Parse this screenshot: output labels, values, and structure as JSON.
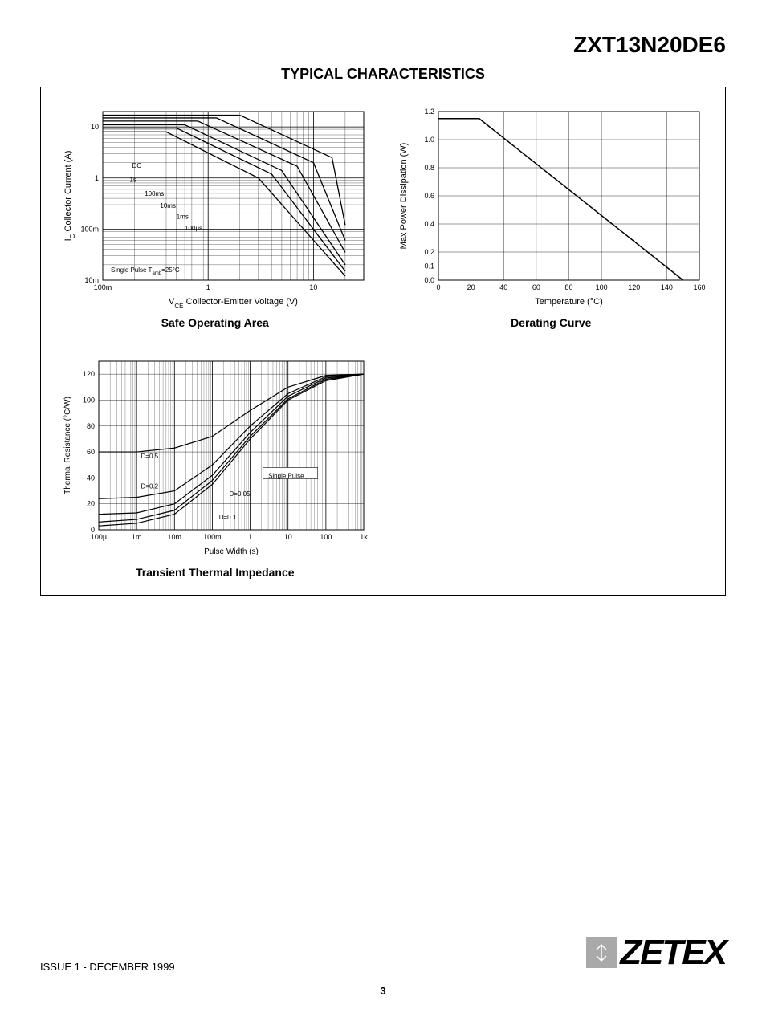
{
  "header": {
    "part_number": "ZXT13N20DE6",
    "section_title": "TYPICAL CHARACTERISTICS"
  },
  "footer": {
    "issue": "ISSUE 1 - DECEMBER 1999",
    "logo_text": "ZETEX",
    "page_number": "3"
  },
  "chart_soa": {
    "type": "line-loglog",
    "title": "Safe Operating Area",
    "xlabel": "VCE  Collector-Emitter Voltage (V)",
    "xlabel_prefix": "V",
    "xlabel_sub": "CE",
    "xlabel_rest": "  Collector-Emitter Voltage (V)",
    "ylabel_prefix": "I",
    "ylabel_sub": "C",
    "ylabel_rest": " Collector Current (A)",
    "xlim": [
      0.1,
      30
    ],
    "ylim": [
      0.01,
      20
    ],
    "x_ticks": [
      {
        "v": 0.1,
        "l": "100m"
      },
      {
        "v": 1,
        "l": "1"
      },
      {
        "v": 10,
        "l": "10"
      }
    ],
    "y_ticks": [
      {
        "v": 0.01,
        "l": "10m"
      },
      {
        "v": 0.1,
        "l": "100m"
      },
      {
        "v": 1,
        "l": "1"
      },
      {
        "v": 10,
        "l": "10"
      }
    ],
    "note": "Single Pulse  T",
    "note_sub": "amb",
    "note_rest": "=25°C",
    "series": [
      {
        "label": "DC",
        "lx": 0.19,
        "ly": 1.6,
        "points": [
          [
            0.1,
            8
          ],
          [
            0.4,
            8
          ],
          [
            3,
            1
          ],
          [
            20,
            0.012
          ]
        ]
      },
      {
        "label": "1s",
        "lx": 0.18,
        "ly": 0.85,
        "points": [
          [
            0.1,
            9.5
          ],
          [
            0.5,
            9.5
          ],
          [
            4,
            1.2
          ],
          [
            20,
            0.015
          ]
        ]
      },
      {
        "label": "100ms",
        "lx": 0.25,
        "ly": 0.45,
        "points": [
          [
            0.1,
            11
          ],
          [
            0.6,
            11
          ],
          [
            5,
            1.4
          ],
          [
            20,
            0.02
          ]
        ]
      },
      {
        "label": "10ms",
        "lx": 0.35,
        "ly": 0.26,
        "points": [
          [
            0.1,
            13
          ],
          [
            0.8,
            13
          ],
          [
            7,
            1.7
          ],
          [
            20,
            0.035
          ]
        ]
      },
      {
        "label": "1ms",
        "lx": 0.5,
        "ly": 0.16,
        "points": [
          [
            0.1,
            15
          ],
          [
            1.2,
            15
          ],
          [
            10,
            2
          ],
          [
            20,
            0.06
          ]
        ]
      },
      {
        "label": "100µs",
        "lx": 0.6,
        "ly": 0.095,
        "points": [
          [
            0.1,
            17
          ],
          [
            2,
            17
          ],
          [
            15,
            2.5
          ],
          [
            20,
            0.12
          ]
        ]
      }
    ],
    "colors": {
      "line": "#000000",
      "grid": "#000000",
      "text": "#000000",
      "bg": "#ffffff"
    },
    "fontsize": {
      "tick": 9,
      "label": 11,
      "note": 8,
      "series": 8
    }
  },
  "chart_derate": {
    "type": "line",
    "title": "Derating Curve",
    "xlabel": "Temperature (°C)",
    "ylabel": "Max Power Dissipation (W)",
    "xlim": [
      0,
      160
    ],
    "ylim": [
      0.0,
      1.2
    ],
    "x_ticks": [
      0,
      20,
      40,
      60,
      80,
      100,
      120,
      140,
      160
    ],
    "y_ticks_ext": [
      {
        "v": 0.0,
        "l": "0.0"
      },
      {
        "v": 0.1,
        "l": "0.1"
      },
      {
        "v": 0.2,
        "l": "0.2"
      },
      {
        "v": 0.4,
        "l": "0.4"
      },
      {
        "v": 0.6,
        "l": "0.6"
      },
      {
        "v": 0.8,
        "l": "0.8"
      },
      {
        "v": 1.0,
        "l": "1.0"
      },
      {
        "v": 1.2,
        "l": "1.2"
      }
    ],
    "series": [
      {
        "points": [
          [
            0,
            1.15
          ],
          [
            25,
            1.15
          ],
          [
            150,
            0
          ]
        ]
      }
    ],
    "colors": {
      "line": "#000000",
      "grid": "#000000",
      "text": "#000000",
      "bg": "#ffffff"
    },
    "fontsize": {
      "tick": 9,
      "label": 11
    }
  },
  "chart_thermal": {
    "type": "line-logx",
    "title": "Transient Thermal Impedance",
    "xlabel": "Pulse Width (s)",
    "ylabel": "Thermal Resistance (°C/W)",
    "xlim": [
      0.0001,
      1000
    ],
    "ylim": [
      0,
      130
    ],
    "x_ticks": [
      {
        "v": 0.0001,
        "l": "100µ"
      },
      {
        "v": 0.001,
        "l": "1m"
      },
      {
        "v": 0.01,
        "l": "10m"
      },
      {
        "v": 0.1,
        "l": "100m"
      },
      {
        "v": 1,
        "l": "1"
      },
      {
        "v": 10,
        "l": "10"
      },
      {
        "v": 100,
        "l": "100"
      },
      {
        "v": 1000,
        "l": "1k"
      }
    ],
    "y_ticks": [
      0,
      20,
      40,
      60,
      80,
      100,
      120
    ],
    "series": [
      {
        "label": "Single Pulse",
        "lx": 4,
        "ly": 42,
        "points": [
          [
            0.0001,
            3
          ],
          [
            0.001,
            5
          ],
          [
            0.01,
            12
          ],
          [
            0.1,
            35
          ],
          [
            1,
            70
          ],
          [
            10,
            100
          ],
          [
            100,
            115
          ],
          [
            1000,
            120
          ]
        ]
      },
      {
        "label": "D=0.05",
        "lx": 0.28,
        "ly": 26,
        "points": [
          [
            0.0001,
            6
          ],
          [
            0.001,
            8
          ],
          [
            0.01,
            15
          ],
          [
            0.1,
            38
          ],
          [
            1,
            72
          ],
          [
            10,
            101
          ],
          [
            100,
            116
          ],
          [
            1000,
            120
          ]
        ]
      },
      {
        "label": "D=0.1",
        "lx": 0.15,
        "ly": 8,
        "points": [
          [
            0.0001,
            12
          ],
          [
            0.001,
            13
          ],
          [
            0.01,
            20
          ],
          [
            0.1,
            42
          ],
          [
            1,
            75
          ],
          [
            10,
            103
          ],
          [
            100,
            117
          ],
          [
            1000,
            120
          ]
        ]
      },
      {
        "label": "D=0.2",
        "lx": 0.0013,
        "ly": 32,
        "points": [
          [
            0.0001,
            24
          ],
          [
            0.001,
            25
          ],
          [
            0.01,
            30
          ],
          [
            0.1,
            50
          ],
          [
            1,
            80
          ],
          [
            10,
            105
          ],
          [
            100,
            118
          ],
          [
            1000,
            120
          ]
        ]
      },
      {
        "label": "D=0.5",
        "lx": 0.0013,
        "ly": 55,
        "points": [
          [
            0.0001,
            60
          ],
          [
            0.001,
            60
          ],
          [
            0.01,
            63
          ],
          [
            0.1,
            72
          ],
          [
            1,
            92
          ],
          [
            10,
            110
          ],
          [
            100,
            119
          ],
          [
            1000,
            120
          ]
        ]
      }
    ],
    "colors": {
      "line": "#000000",
      "grid": "#000000",
      "text": "#000000",
      "bg": "#ffffff"
    },
    "fontsize": {
      "tick": 9,
      "label": 10,
      "series": 8
    }
  }
}
